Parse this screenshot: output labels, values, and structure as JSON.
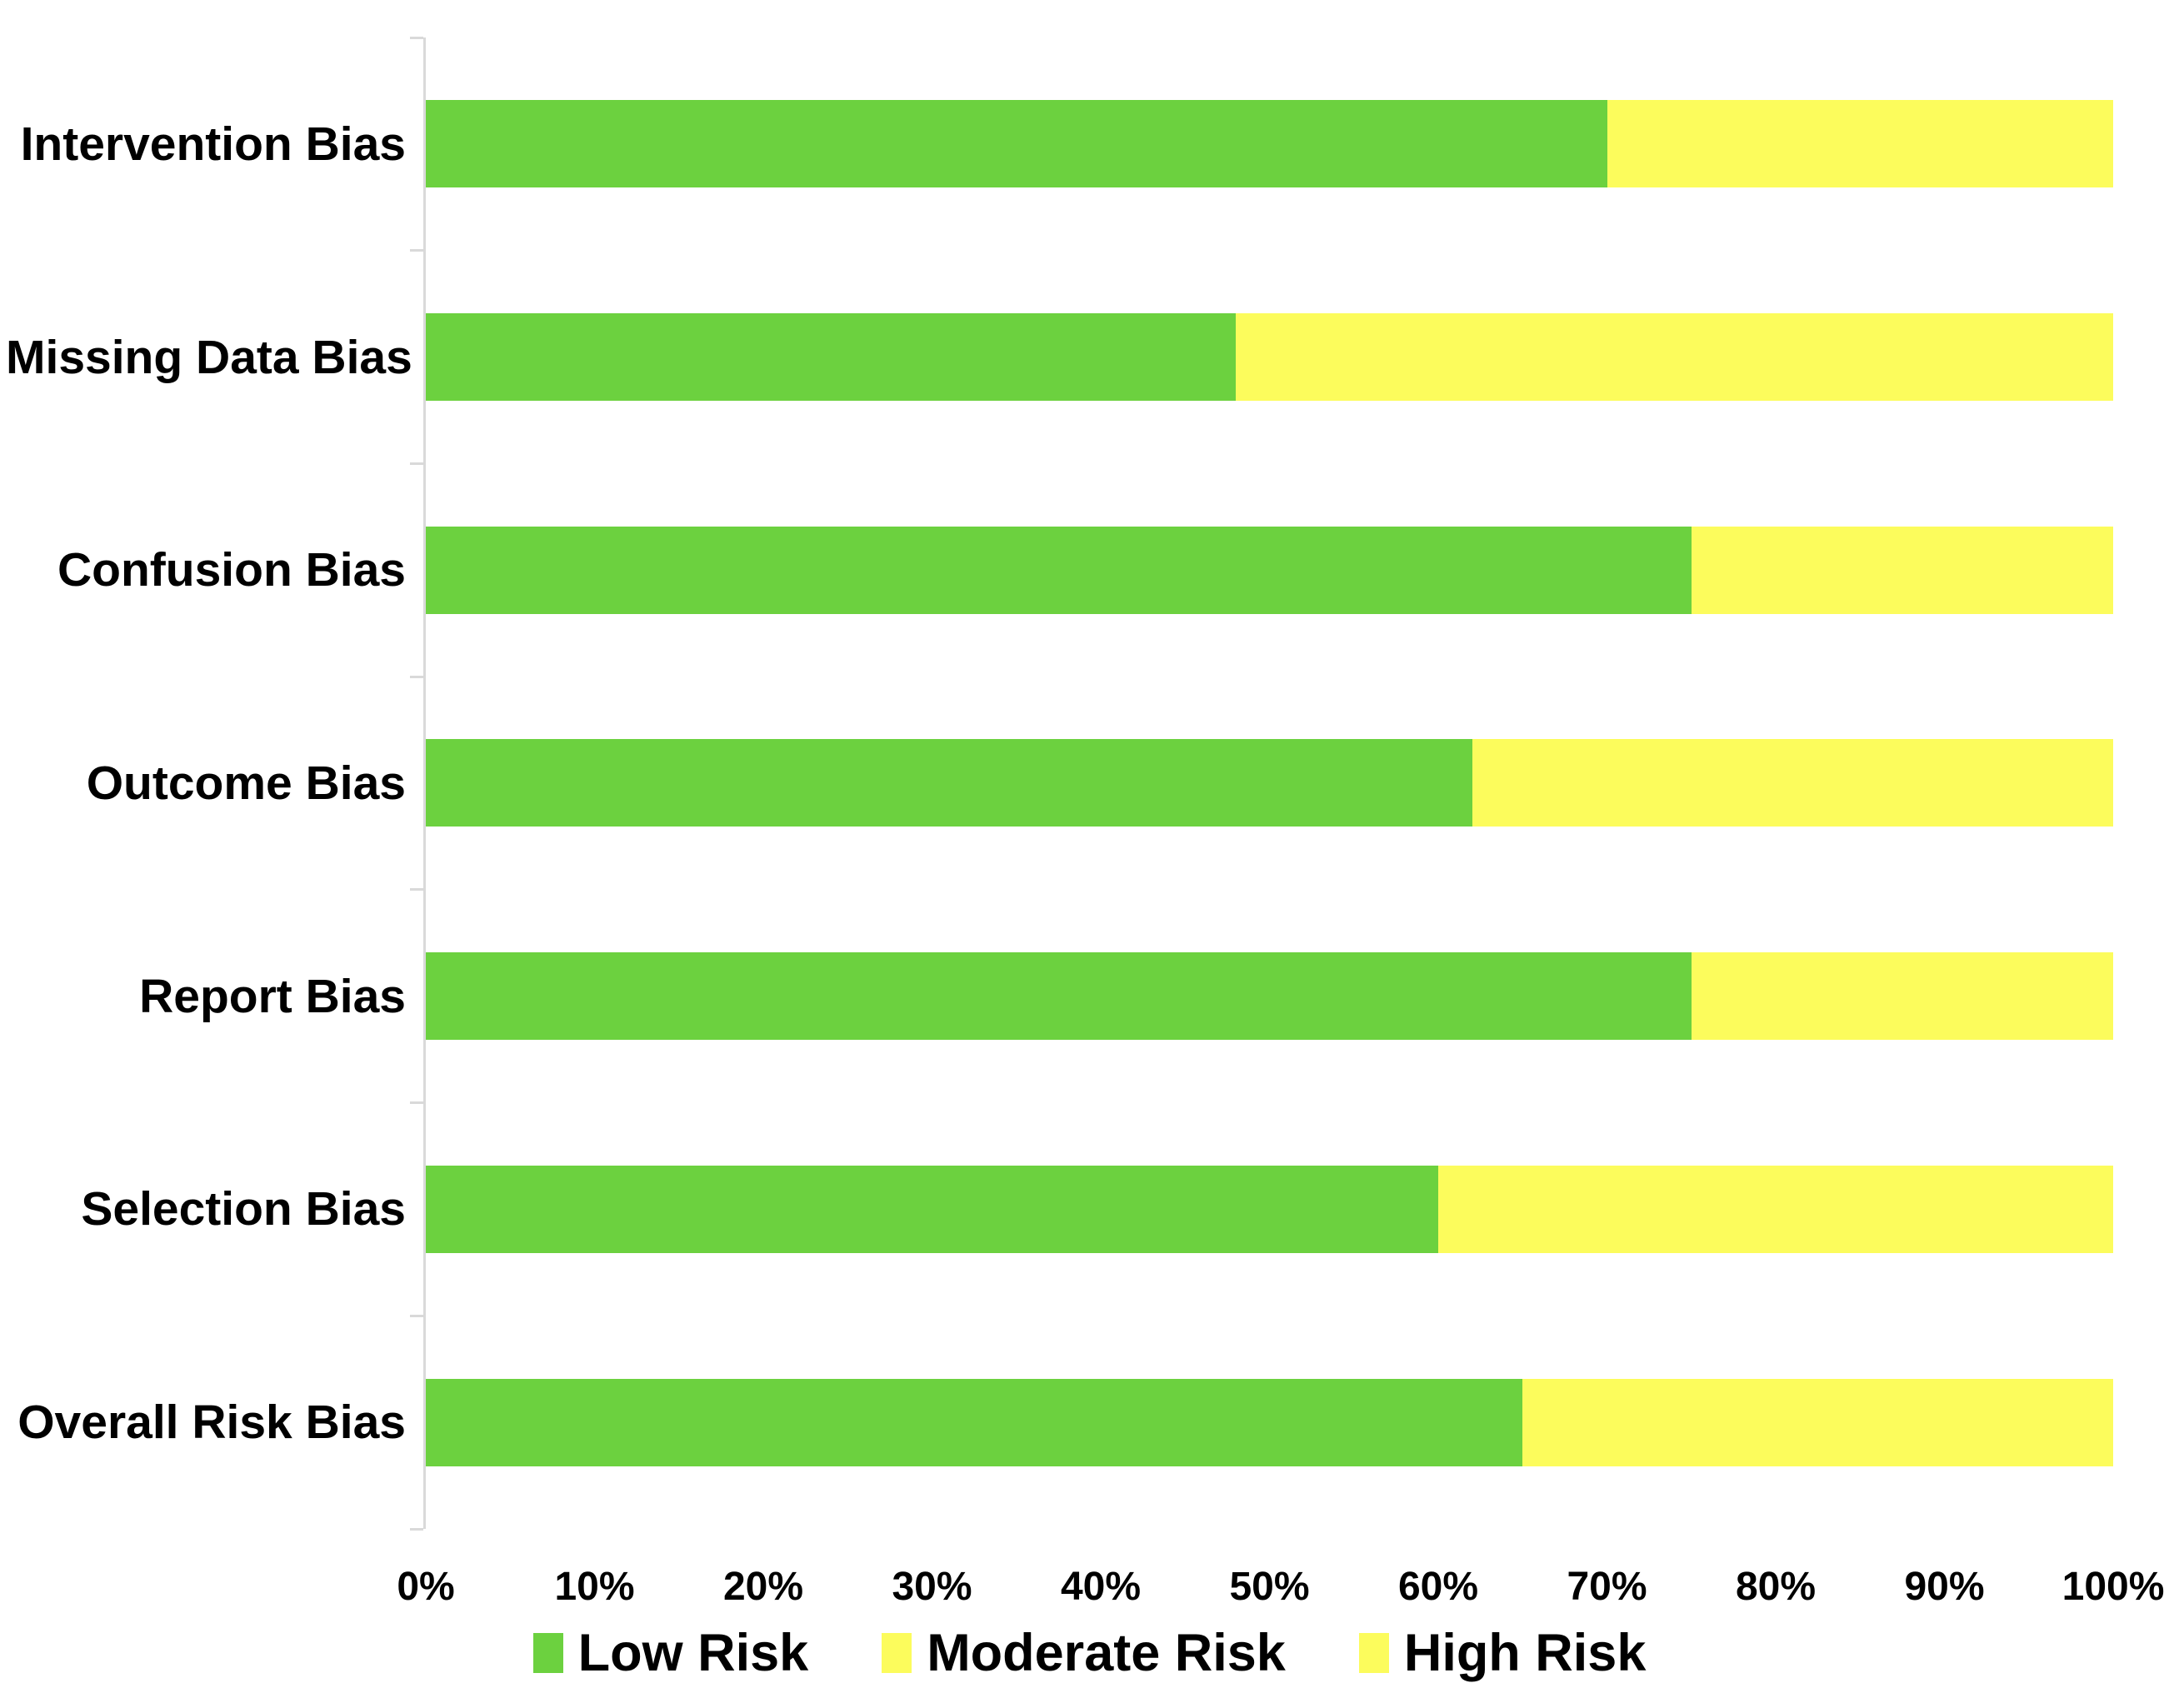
{
  "chart_data": {
    "type": "bar",
    "orientation": "horizontal",
    "stacked": true,
    "title": "",
    "xlabel": "",
    "ylabel": "",
    "categories": [
      "Intervention Bias",
      "Missing Data Bias",
      "Confusion Bias",
      "Outcome Bias",
      "Report Bias",
      "Selection Bias",
      "Overall Risk Bias"
    ],
    "series": [
      {
        "name": "Low Risk",
        "color": "#6cd13f",
        "values": [
          70,
          48,
          75,
          62,
          75,
          60,
          65
        ]
      },
      {
        "name": "Moderate Risk",
        "color": "#fcfc5c",
        "values": [
          30,
          52,
          25,
          38,
          25,
          40,
          35
        ]
      },
      {
        "name": "High Risk",
        "color": "#fcfc5c",
        "values": [
          0,
          0,
          0,
          0,
          0,
          0,
          0
        ]
      }
    ],
    "x_axis": {
      "min": 0,
      "max": 100,
      "tick_step": 10,
      "ticks": [
        "0%",
        "10%",
        "20%",
        "30%",
        "40%",
        "50%",
        "60%",
        "70%",
        "80%",
        "90%",
        "100%"
      ]
    },
    "legend": {
      "position": "bottom",
      "entries": [
        "Low Risk",
        "Moderate Risk",
        "High Risk"
      ]
    },
    "grid": false,
    "background_color": "#ffffff",
    "axis_line_color": "#d9d9d9"
  }
}
